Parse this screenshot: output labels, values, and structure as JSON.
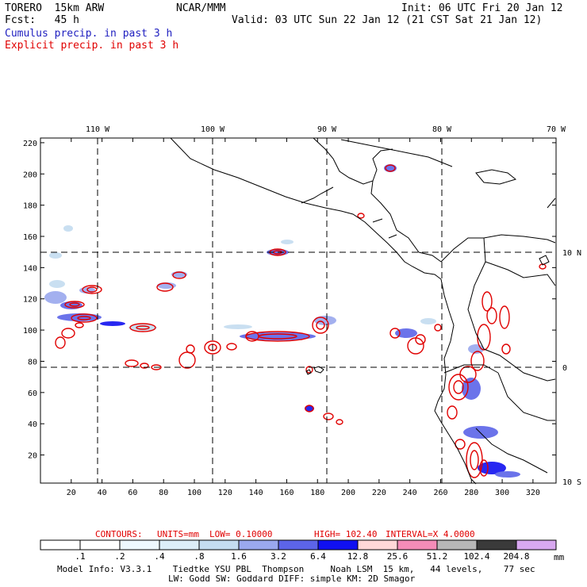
{
  "header": {
    "model": "TORERO  15km ARW",
    "center": "NCAR/MMM",
    "init": "Init: 06 UTC Fri 20 Jan 12",
    "forecast": "Fcst:   45 h",
    "valid": "Valid: 03 UTC Sun 22 Jan 12 (21 CST Sat 21 Jan 12)",
    "field1": "Cumulus precip. in past 3 h",
    "field2": "Explicit precip. in past 3 h"
  },
  "map": {
    "top_lon_labels": [
      "110 W",
      "100 W",
      "90 W",
      "80 W",
      "70 W"
    ],
    "right_lat_labels": [
      "10 N",
      "0",
      "10 S"
    ],
    "y_ticks": [
      "220",
      "200",
      "180",
      "160",
      "140",
      "120",
      "100",
      "80",
      "60",
      "40",
      "20"
    ],
    "x_ticks": [
      "20",
      "40",
      "60",
      "80",
      "100",
      "120",
      "140",
      "160",
      "180",
      "200",
      "220",
      "240",
      "260",
      "280",
      "300",
      "320"
    ],
    "x_range": [
      0,
      335
    ],
    "y_range": [
      2,
      223
    ]
  },
  "contours": {
    "label": "CONTOURS:",
    "units": "UNITS=mm",
    "low": "LOW= 0.10000",
    "high": "HIGH=  102.40",
    "interval": "INTERVAL=X  4.0000"
  },
  "legend": {
    "values": [
      ".1",
      ".2",
      ".4",
      ".8",
      "1.6",
      "3.2",
      "6.4",
      "12.8",
      "25.6",
      "51.2",
      "102.4",
      "204.8"
    ],
    "units": "mm",
    "colors": [
      "#ffffff",
      "#ffffff",
      "#eef8ff",
      "#dceef8",
      "#c4dcf0",
      "#9aa8ee",
      "#5c64e8",
      "#1010f0",
      "#ffd8d8",
      "#f48cb8",
      "#b8b8b8",
      "#3a3a3a",
      "#d8a8f0"
    ]
  },
  "footer": {
    "line1": "Model Info: V3.3.1    Tiedtke YSU PBL  Thompson     Noah LSM  15 km,   44 levels,    77 sec",
    "line2": "LW: Godd SW: Goddard DIFF: simple KM: 2D Smagor"
  }
}
